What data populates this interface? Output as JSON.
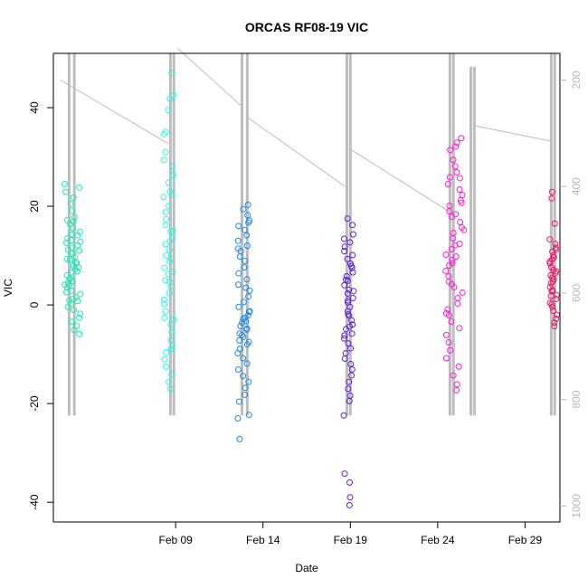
{
  "chart_data": {
    "type": "scatter",
    "title": "ORCAS RF08-19 VIC",
    "xlabel": "Date",
    "ylabel": "VIC",
    "x_ticks": [
      "Feb 09",
      "Feb 14",
      "Feb 19",
      "Feb 24",
      "Feb 29"
    ],
    "y_ticks": [
      "-40",
      "-20",
      "0",
      "20",
      "40"
    ],
    "y2_ticks": [
      "200",
      "400",
      "600",
      "800",
      "1000"
    ],
    "xlim_days": [
      2,
      31
    ],
    "ylim": [
      -44,
      51
    ],
    "y2lim": [
      1030,
      150
    ],
    "grid": false,
    "colors": {
      "rf08": "#1de9b6",
      "rf09": "#2ef5e8",
      "rf12": "#1e88e5",
      "rf15": "#5c1ee6",
      "rf17": "#ff1fd2",
      "rf19": "#f0146a",
      "pressure": "#bdbdbd"
    },
    "series": [
      {
        "color_key": "rf08",
        "x_center_day": 3.1,
        "x_spread": 0.45,
        "points": [
          24.5,
          23.8,
          22.9,
          21.8,
          20.5,
          19.1,
          17.8,
          17.2,
          16.4,
          15.6,
          14.8,
          14.1,
          13.5,
          12.8,
          12.1,
          11.6,
          11.0,
          10.4,
          9.7,
          9.1,
          8.5,
          7.9,
          7.3,
          6.6,
          6.0,
          5.4,
          4.8,
          4.1,
          3.5,
          2.9,
          2.2,
          1.6,
          0.9,
          0.3,
          -0.4,
          -1.0,
          -1.8,
          -2.6,
          -3.4,
          -4.2,
          -5.1,
          -5.9,
          14.3,
          11.2,
          8.6,
          6.8,
          3.9,
          1.2,
          9.3,
          12.6,
          5.2,
          2.6,
          0.8,
          16.9,
          13.1,
          7.6,
          10.5,
          4.4
        ]
      },
      {
        "color_key": "rf09",
        "x_center_day": 8.6,
        "x_spread": 0.3,
        "points": [
          47.0,
          42.5,
          41.8,
          39.5,
          35.1,
          34.6,
          31.0,
          29.4,
          28.1,
          26.3,
          24.8,
          23.0,
          21.9,
          20.1,
          18.8,
          17.4,
          16.2,
          14.9,
          13.6,
          12.3,
          11.1,
          10.0,
          8.8,
          7.5,
          6.3,
          5.0,
          3.7,
          2.4,
          1.1,
          0.2,
          -1.3,
          -2.6,
          -4.0,
          -5.5,
          -7.1,
          -8.2,
          -9.6,
          -11.0,
          -12.5,
          -14.1,
          -15.6,
          -17.0,
          22.4,
          15.0,
          9.4,
          4.8,
          -3.0,
          -8.9,
          12.9,
          6.7
        ]
      },
      {
        "color_key": "rf12",
        "x_center_day": 12.9,
        "x_spread": 0.35,
        "points": [
          20.3,
          19.4,
          18.2,
          17.1,
          16.0,
          15.2,
          14.1,
          13.0,
          12.0,
          10.9,
          9.8,
          8.9,
          7.6,
          6.4,
          5.2,
          4.1,
          2.9,
          1.7,
          0.6,
          -0.4,
          -1.3,
          -2.1,
          -2.9,
          -3.6,
          -4.3,
          -5.0,
          -5.8,
          -6.5,
          -7.2,
          -8.0,
          -8.9,
          -9.8,
          -10.8,
          -11.9,
          -13.1,
          -14.4,
          -15.6,
          -16.8,
          -18.2,
          -19.6,
          -22.3,
          -23.0,
          -27.2,
          -2.6,
          -4.8,
          -6.1,
          -1.4,
          -3.3,
          3.5,
          11.4,
          16.7,
          -7.5
        ]
      },
      {
        "color_key": "rf15",
        "x_center_day": 18.9,
        "x_spread": 0.3,
        "points": [
          17.5,
          16.2,
          14.3,
          13.4,
          12.7,
          11.8,
          10.9,
          10.1,
          9.3,
          8.4,
          7.5,
          6.6,
          5.8,
          4.9,
          4.0,
          3.1,
          2.3,
          1.4,
          0.5,
          -0.4,
          -1.3,
          -2.2,
          -3.1,
          -4.0,
          -4.9,
          -5.8,
          -6.8,
          -7.8,
          -8.8,
          -9.8,
          -10.9,
          -12.0,
          -13.1,
          -14.3,
          -15.6,
          -17.0,
          -18.4,
          -19.5,
          -22.4,
          -34.2,
          -36.0,
          -39.0,
          -40.6,
          2.8,
          5.1,
          -1.9,
          -4.4,
          7.9,
          -6.2,
          0.9
        ]
      },
      {
        "color_key": "rf17",
        "x_center_day": 25.0,
        "x_spread": 0.55,
        "points": [
          33.8,
          32.9,
          32.1,
          31.4,
          29.4,
          28.1,
          26.9,
          25.7,
          24.5,
          23.4,
          22.3,
          21.2,
          20.1,
          19.0,
          17.9,
          16.8,
          15.7,
          14.6,
          13.5,
          12.4,
          11.3,
          10.2,
          9.1,
          8.0,
          6.9,
          5.8,
          4.7,
          3.6,
          2.5,
          1.4,
          0.3,
          -0.9,
          -2.1,
          -3.4,
          -4.7,
          -6.1,
          -7.6,
          -9.2,
          -10.8,
          -12.5,
          -14.3,
          -16.1,
          -17.3,
          25.9,
          18.4,
          12.1,
          8.5,
          15.2,
          4.2,
          -1.7,
          20.7,
          9.8
        ]
      },
      {
        "color_key": "rf19",
        "x_center_day": 30.6,
        "x_spread": 0.25,
        "points": [
          22.9,
          21.6,
          16.5,
          13.3,
          12.4,
          11.6,
          10.8,
          10.0,
          9.2,
          8.4,
          7.6,
          6.8,
          6.0,
          5.2,
          4.4,
          3.6,
          2.8,
          2.0,
          1.2,
          0.4,
          -0.4,
          -1.2,
          -2.0,
          -2.8,
          -3.6,
          -4.3,
          9.6,
          7.1,
          5.5,
          3.0,
          11.2,
          8.8,
          6.4,
          4.8,
          1.8,
          0.1
        ]
      }
    ],
    "pressure_track": {
      "y2_axis": "pressure",
      "segments": [
        [
          [
            2.4,
            200
          ],
          [
            8.6,
            320
          ]
        ],
        [
          [
            9.1,
            140
          ],
          [
            12.8,
            250
          ]
        ],
        [
          [
            13.1,
            270
          ],
          [
            18.7,
            400
          ]
        ],
        [
          [
            19.0,
            330
          ],
          [
            24.8,
            450
          ]
        ],
        [
          [
            26.0,
            285
          ],
          [
            30.5,
            315
          ]
        ]
      ],
      "spikes": [
        {
          "x": 2.9,
          "y2_range": [
            150,
            830
          ]
        },
        {
          "x": 3.2,
          "y2_range": [
            150,
            830
          ]
        },
        {
          "x": 8.7,
          "y2_range": [
            150,
            830
          ]
        },
        {
          "x": 8.9,
          "y2_range": [
            150,
            830
          ]
        },
        {
          "x": 12.8,
          "y2_range": [
            150,
            830
          ]
        },
        {
          "x": 13.1,
          "y2_range": [
            150,
            830
          ]
        },
        {
          "x": 18.8,
          "y2_range": [
            150,
            830
          ]
        },
        {
          "x": 19.0,
          "y2_range": [
            150,
            830
          ]
        },
        {
          "x": 24.7,
          "y2_range": [
            150,
            830
          ]
        },
        {
          "x": 24.9,
          "y2_range": [
            150,
            830
          ]
        },
        {
          "x": 25.9,
          "y2_range": [
            175,
            830
          ]
        },
        {
          "x": 26.1,
          "y2_range": [
            175,
            830
          ]
        },
        {
          "x": 30.5,
          "y2_range": [
            150,
            830
          ]
        },
        {
          "x": 30.7,
          "y2_range": [
            150,
            830
          ]
        }
      ]
    }
  }
}
